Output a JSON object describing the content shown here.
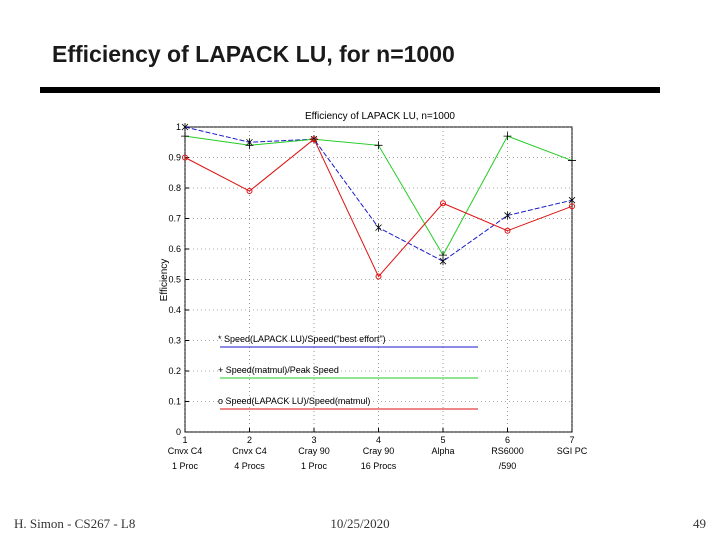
{
  "slide": {
    "title": "Efficiency of LAPACK LU, for n=1000",
    "footer": {
      "left": "H. Simon - CS267 - L8",
      "center": "10/25/2020",
      "right": "49"
    }
  },
  "chart_data": {
    "type": "line",
    "title": "Efficiency of LAPACK LU, n=1000",
    "y_label": "Efficiency",
    "x": [
      1,
      2,
      3,
      4,
      5,
      6,
      7
    ],
    "categories": [
      "Cnvx C4",
      "Cnvx C4",
      "Cray 90",
      "Cray 90",
      "Alpha",
      "RS6000",
      "SGI PC"
    ],
    "category_notes": [
      "1 Proc",
      "4 Procs",
      "1 Proc",
      "16 Procs",
      null,
      "/590",
      null
    ],
    "xlim": [
      1,
      7
    ],
    "xticks": [
      1,
      2,
      3,
      4,
      5,
      6,
      7
    ],
    "ylim": [
      0,
      1
    ],
    "yticks": [
      0,
      0.1,
      0.2,
      0.3,
      0.4,
      0.5,
      0.6,
      0.7,
      0.8,
      0.9,
      1
    ],
    "grid": true,
    "legend": "lower center",
    "series": [
      {
        "name": "* Speed(LAPACK LU)/Speed(\"best effort\")",
        "color": "#1a1acc",
        "marker": "star",
        "values": [
          1.0,
          0.95,
          0.96,
          0.67,
          0.56,
          0.71,
          0.76
        ]
      },
      {
        "name": "+ Speed(matmul)/Peak Speed",
        "color": "#22cc22",
        "marker": "plus",
        "values": [
          0.97,
          0.94,
          0.96,
          0.94,
          0.58,
          0.97,
          0.89
        ]
      },
      {
        "name": "o Speed(LAPACK LU)/Speed(matmul)",
        "color": "#dd1111",
        "marker": "circle",
        "values": [
          0.9,
          0.79,
          0.96,
          0.51,
          0.75,
          0.66,
          0.74
        ]
      }
    ]
  }
}
